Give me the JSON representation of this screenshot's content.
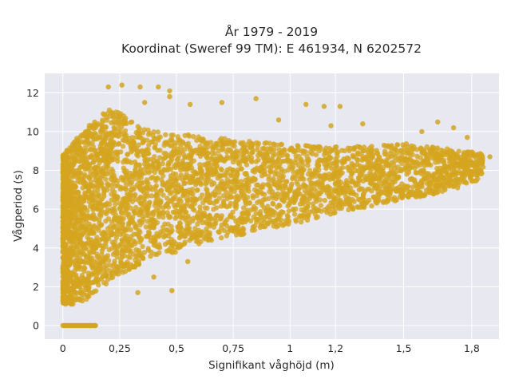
{
  "chart_data": {
    "type": "scatter",
    "title": "År 1979 - 2019",
    "subtitle": "Koordinat (Sweref 99 TM): E 461934, N 6202572",
    "xlabel": "Signifikant våghöjd (m)",
    "ylabel": "Vågperiod (s)",
    "xlim": [
      -0.08,
      1.92
    ],
    "ylim": [
      -0.7,
      13
    ],
    "x_ticks": [
      0,
      0.25,
      0.5,
      0.75,
      1,
      1.2,
      1.5,
      1.8
    ],
    "x_tick_labels": [
      "0",
      "0,25",
      "0,5",
      "0,75",
      "1",
      "1,2",
      "1,5",
      "1,8"
    ],
    "y_ticks": [
      0,
      2,
      4,
      6,
      8,
      10,
      12
    ],
    "y_tick_labels": [
      "0",
      "2",
      "4",
      "6",
      "8",
      "10",
      "12"
    ],
    "grid": true,
    "colors": {
      "marker": "#D4A51F",
      "plot_background": "#E8E8F0",
      "grid": "#FFFFFF"
    },
    "series": [
      {
        "description": "dense envelope of observations (lower/upper period bounds vs wave height)",
        "envelope": [
          {
            "x": 0.0,
            "y_low": 1.1,
            "y_high": 8.8
          },
          {
            "x": 0.05,
            "y_low": 1.1,
            "y_high": 9.5
          },
          {
            "x": 0.1,
            "y_low": 1.3,
            "y_high": 10.2
          },
          {
            "x": 0.15,
            "y_low": 1.8,
            "y_high": 10.6
          },
          {
            "x": 0.2,
            "y_low": 2.2,
            "y_high": 11.2
          },
          {
            "x": 0.25,
            "y_low": 2.6,
            "y_high": 11.0
          },
          {
            "x": 0.35,
            "y_low": 3.2,
            "y_high": 10.2
          },
          {
            "x": 0.5,
            "y_low": 3.8,
            "y_high": 9.9
          },
          {
            "x": 0.75,
            "y_low": 4.6,
            "y_high": 9.6
          },
          {
            "x": 1.0,
            "y_low": 5.2,
            "y_high": 9.3
          },
          {
            "x": 1.25,
            "y_low": 5.9,
            "y_high": 9.2
          },
          {
            "x": 1.5,
            "y_low": 6.5,
            "y_high": 9.4
          },
          {
            "x": 1.7,
            "y_low": 6.9,
            "y_high": 9.1
          },
          {
            "x": 1.85,
            "y_low": 7.6,
            "y_high": 8.9
          }
        ],
        "zero_period_band": {
          "x_from": 0.0,
          "x_to": 0.15,
          "y": 0
        },
        "notable_points": [
          {
            "x": 0.2,
            "y": 12.3
          },
          {
            "x": 0.26,
            "y": 12.4
          },
          {
            "x": 0.34,
            "y": 12.3
          },
          {
            "x": 0.42,
            "y": 12.3
          },
          {
            "x": 0.47,
            "y": 12.1
          },
          {
            "x": 0.47,
            "y": 11.8
          },
          {
            "x": 0.36,
            "y": 11.5
          },
          {
            "x": 0.56,
            "y": 11.4
          },
          {
            "x": 0.7,
            "y": 11.5
          },
          {
            "x": 0.85,
            "y": 11.7
          },
          {
            "x": 1.07,
            "y": 11.4
          },
          {
            "x": 1.15,
            "y": 11.3
          },
          {
            "x": 1.22,
            "y": 11.3
          },
          {
            "x": 0.95,
            "y": 10.6
          },
          {
            "x": 1.18,
            "y": 10.3
          },
          {
            "x": 1.32,
            "y": 10.4
          },
          {
            "x": 1.58,
            "y": 10.0
          },
          {
            "x": 1.65,
            "y": 10.5
          },
          {
            "x": 1.72,
            "y": 10.2
          },
          {
            "x": 1.78,
            "y": 9.7
          },
          {
            "x": 1.88,
            "y": 8.7
          },
          {
            "x": 0.12,
            "y": 0.0
          },
          {
            "x": 0.14,
            "y": 0.0
          },
          {
            "x": 0.48,
            "y": 1.8
          },
          {
            "x": 0.33,
            "y": 1.7
          },
          {
            "x": 0.4,
            "y": 2.5
          },
          {
            "x": 0.55,
            "y": 3.3
          }
        ]
      }
    ]
  }
}
